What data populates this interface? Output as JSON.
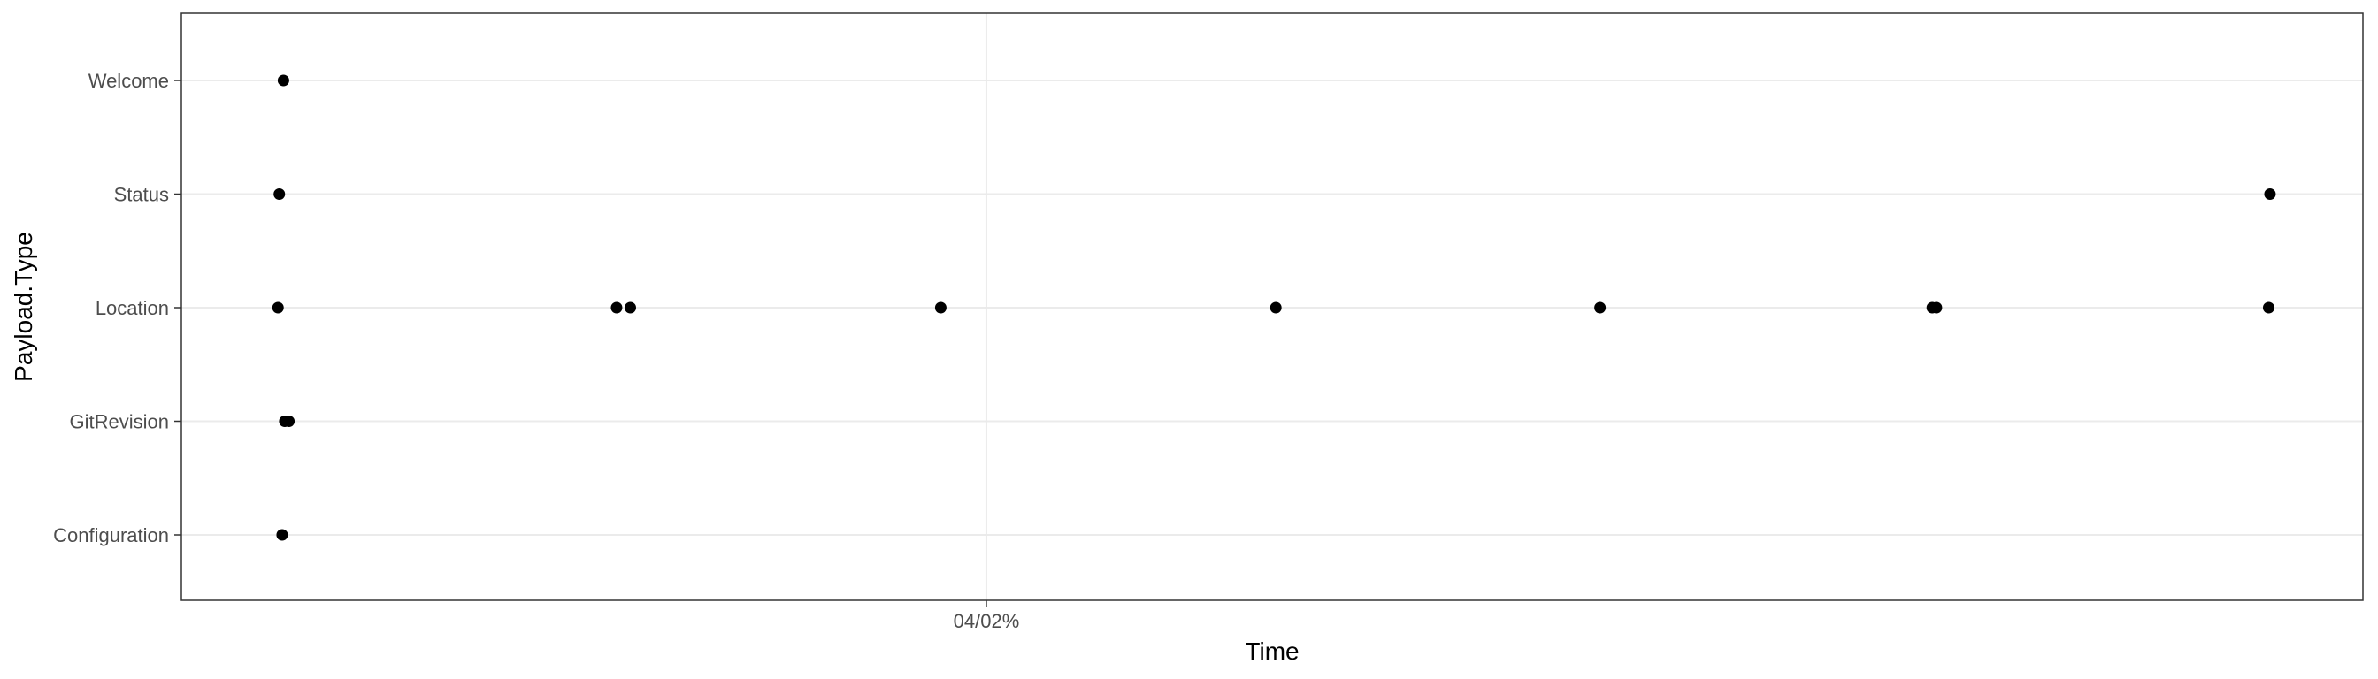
{
  "chart_data": {
    "type": "scatter",
    "title": "",
    "xlabel": "Time",
    "ylabel": "Payload.Type",
    "x_ticks": [
      "04/02%"
    ],
    "categories": [
      "Welcome",
      "Status",
      "Location",
      "GitRevision",
      "Configuration"
    ],
    "grid": true,
    "legend": "none",
    "point_color": "#000000",
    "xlim": [
      0,
      100
    ],
    "points": [
      {
        "x": 4.68,
        "y": "Welcome"
      },
      {
        "x": 4.49,
        "y": "Status"
      },
      {
        "x": 95.74,
        "y": "Status"
      },
      {
        "x": 4.43,
        "y": "Location"
      },
      {
        "x": 19.95,
        "y": "Location"
      },
      {
        "x": 20.58,
        "y": "Location"
      },
      {
        "x": 34.81,
        "y": "Location"
      },
      {
        "x": 50.17,
        "y": "Location"
      },
      {
        "x": 65.03,
        "y": "Location"
      },
      {
        "x": 80.26,
        "y": "Location"
      },
      {
        "x": 80.45,
        "y": "Location"
      },
      {
        "x": 95.68,
        "y": "Location"
      },
      {
        "x": 4.74,
        "y": "GitRevision"
      },
      {
        "x": 4.93,
        "y": "GitRevision"
      },
      {
        "x": 4.62,
        "y": "Configuration"
      }
    ],
    "tick_x_positions": [
      36.9
    ]
  }
}
